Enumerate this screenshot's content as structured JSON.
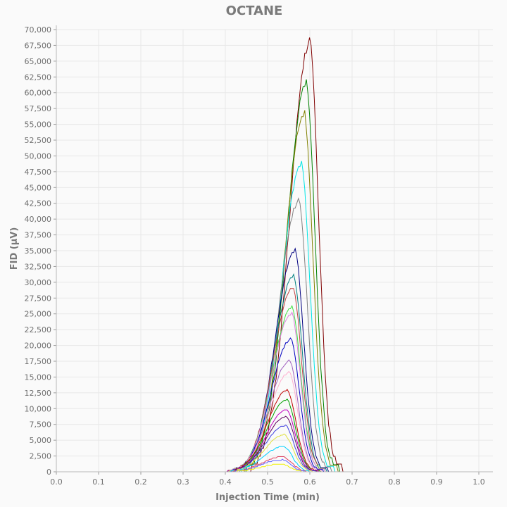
{
  "chart_data": {
    "type": "line",
    "title": "OCTANE",
    "xlabel": "Injection Time (min)",
    "ylabel": "FID (µV)",
    "xlim": [
      0,
      1.0
    ],
    "ylim": [
      0,
      70000
    ],
    "x_ticks": [
      "0.0",
      "0.1",
      "0.2",
      "0.3",
      "0.4",
      "0.5",
      "0.6",
      "0.7",
      "0.8",
      "0.9",
      "1.0"
    ],
    "y_ticks": [
      "0",
      "2,500",
      "5,000",
      "7,500",
      "10,000",
      "12,500",
      "15,000",
      "17,500",
      "20,000",
      "22,500",
      "25,000",
      "27,500",
      "30,000",
      "32,500",
      "35,000",
      "37,500",
      "40,000",
      "42,500",
      "45,000",
      "47,500",
      "50,000",
      "52,500",
      "55,000",
      "57,500",
      "60,000",
      "62,500",
      "65,000",
      "67,500",
      "70,000"
    ],
    "grid": true,
    "legend": "none",
    "series": [
      {
        "color": "#800000",
        "peak_x": 0.598,
        "peak_y": 67500
      },
      {
        "color": "#008000",
        "peak_x": 0.59,
        "peak_y": 61000
      },
      {
        "color": "#808000",
        "peak_x": 0.585,
        "peak_y": 56200
      },
      {
        "color": "#00e5e5",
        "peak_x": 0.578,
        "peak_y": 48300
      },
      {
        "color": "#808080",
        "peak_x": 0.572,
        "peak_y": 42500
      },
      {
        "color": "#000080",
        "peak_x": 0.563,
        "peak_y": 34700
      },
      {
        "color": "#008080",
        "peak_x": 0.56,
        "peak_y": 30700
      },
      {
        "color": "#c04040",
        "peak_x": 0.558,
        "peak_y": 29000
      },
      {
        "color": "#40e040",
        "peak_x": 0.556,
        "peak_y": 25800
      },
      {
        "color": "#e080e0",
        "peak_x": 0.555,
        "peak_y": 24800
      },
      {
        "color": "#0000c0",
        "peak_x": 0.553,
        "peak_y": 20800
      },
      {
        "color": "#a060c0",
        "peak_x": 0.55,
        "peak_y": 17400
      },
      {
        "color": "#ffb0d0",
        "peak_x": 0.549,
        "peak_y": 15600
      },
      {
        "color": "#c00000",
        "peak_x": 0.545,
        "peak_y": 12800
      },
      {
        "color": "#00a000",
        "peak_x": 0.544,
        "peak_y": 11300
      },
      {
        "color": "#c000c0",
        "peak_x": 0.543,
        "peak_y": 9800
      },
      {
        "color": "#600060",
        "peak_x": 0.542,
        "peak_y": 8700
      },
      {
        "color": "#4040e0",
        "peak_x": 0.54,
        "peak_y": 7300
      },
      {
        "color": "#e0e040",
        "peak_x": 0.538,
        "peak_y": 5800
      },
      {
        "color": "#00d0ff",
        "peak_x": 0.536,
        "peak_y": 4000
      },
      {
        "color": "#e04060",
        "peak_x": 0.534,
        "peak_y": 2400
      },
      {
        "color": "#6060ff",
        "peak_x": 0.532,
        "peak_y": 1900
      },
      {
        "color": "#f0f000",
        "peak_x": 0.53,
        "peak_y": 1200
      }
    ]
  }
}
